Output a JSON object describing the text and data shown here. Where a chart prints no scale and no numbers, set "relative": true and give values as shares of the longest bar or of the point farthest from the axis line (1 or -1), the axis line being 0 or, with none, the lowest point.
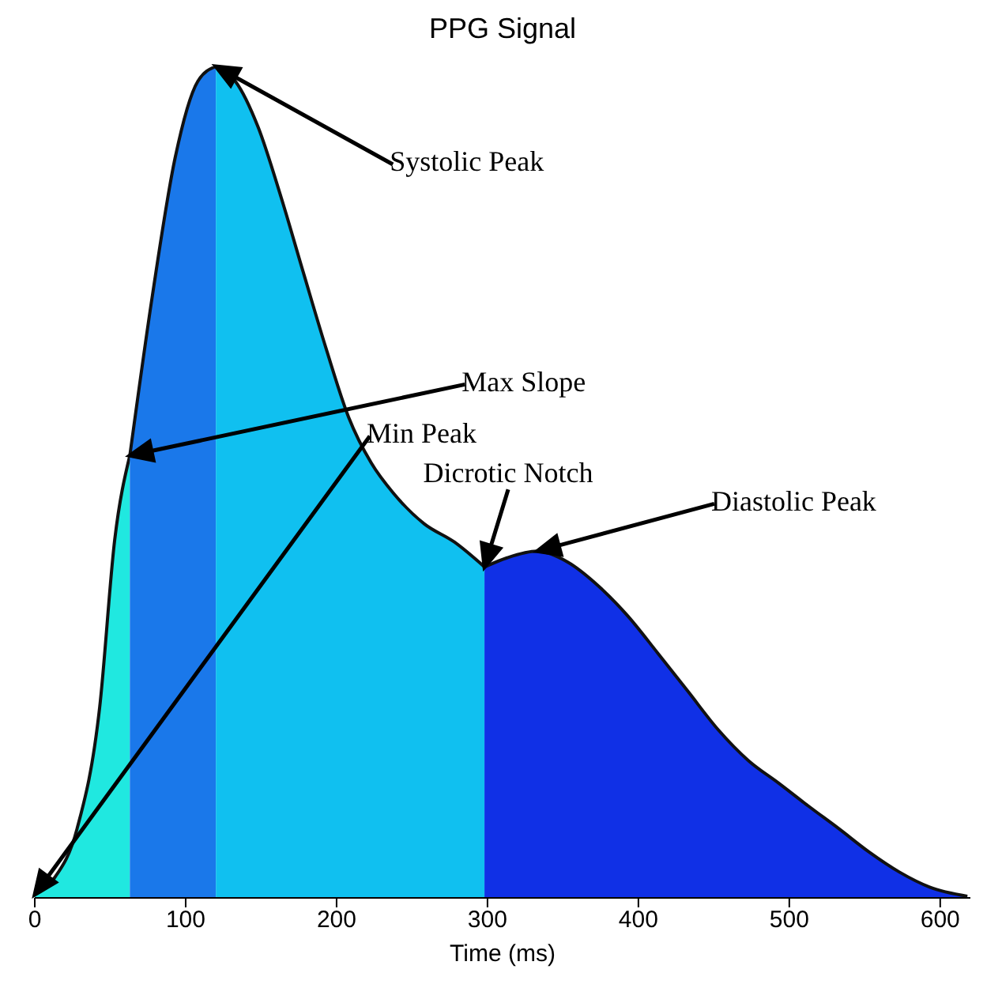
{
  "chart_data": {
    "type": "area",
    "title": "PPG Signal",
    "xlabel": "Time (ms)",
    "relative": true,
    "xlim": [
      0,
      620
    ],
    "xticks": [
      0,
      100,
      200,
      300,
      400,
      500,
      600
    ],
    "series": [
      {
        "type": "area",
        "color": "#20e8e0",
        "x": [
          0,
          13,
          28,
          43,
          53,
          63
        ],
        "values": [
          0.004,
          0.024,
          0.083,
          0.229,
          0.431,
          0.532
        ]
      },
      {
        "type": "area",
        "color": "#1a78ea",
        "x": [
          63,
          78,
          93,
          108,
          120
        ],
        "values": [
          0.532,
          0.725,
          0.89,
          0.982,
          1
        ]
      },
      {
        "type": "area",
        "color": "#10c0f0",
        "x": [
          120,
          133,
          148,
          163,
          178,
          193,
          208,
          223,
          238,
          258,
          278,
          298
        ],
        "values": [
          1,
          0.982,
          0.927,
          0.844,
          0.752,
          0.661,
          0.578,
          0.523,
          0.486,
          0.45,
          0.428,
          0.398
        ]
      },
      {
        "type": "area",
        "color": "#1030e6",
        "x": [
          298,
          313,
          333,
          353,
          373,
          393,
          413,
          433,
          453,
          473,
          493,
          513,
          533,
          553,
          573,
          593,
          618
        ],
        "values": [
          0.398,
          0.409,
          0.417,
          0.404,
          0.376,
          0.339,
          0.294,
          0.248,
          0.202,
          0.165,
          0.138,
          0.11,
          0.083,
          0.055,
          0.031,
          0.013,
          0.002
        ]
      }
    ],
    "annotations": [
      "Systolic Peak",
      "Max Slope",
      "Dicrotic Notch",
      "Diastolic Peak",
      "Min Peak"
    ]
  }
}
